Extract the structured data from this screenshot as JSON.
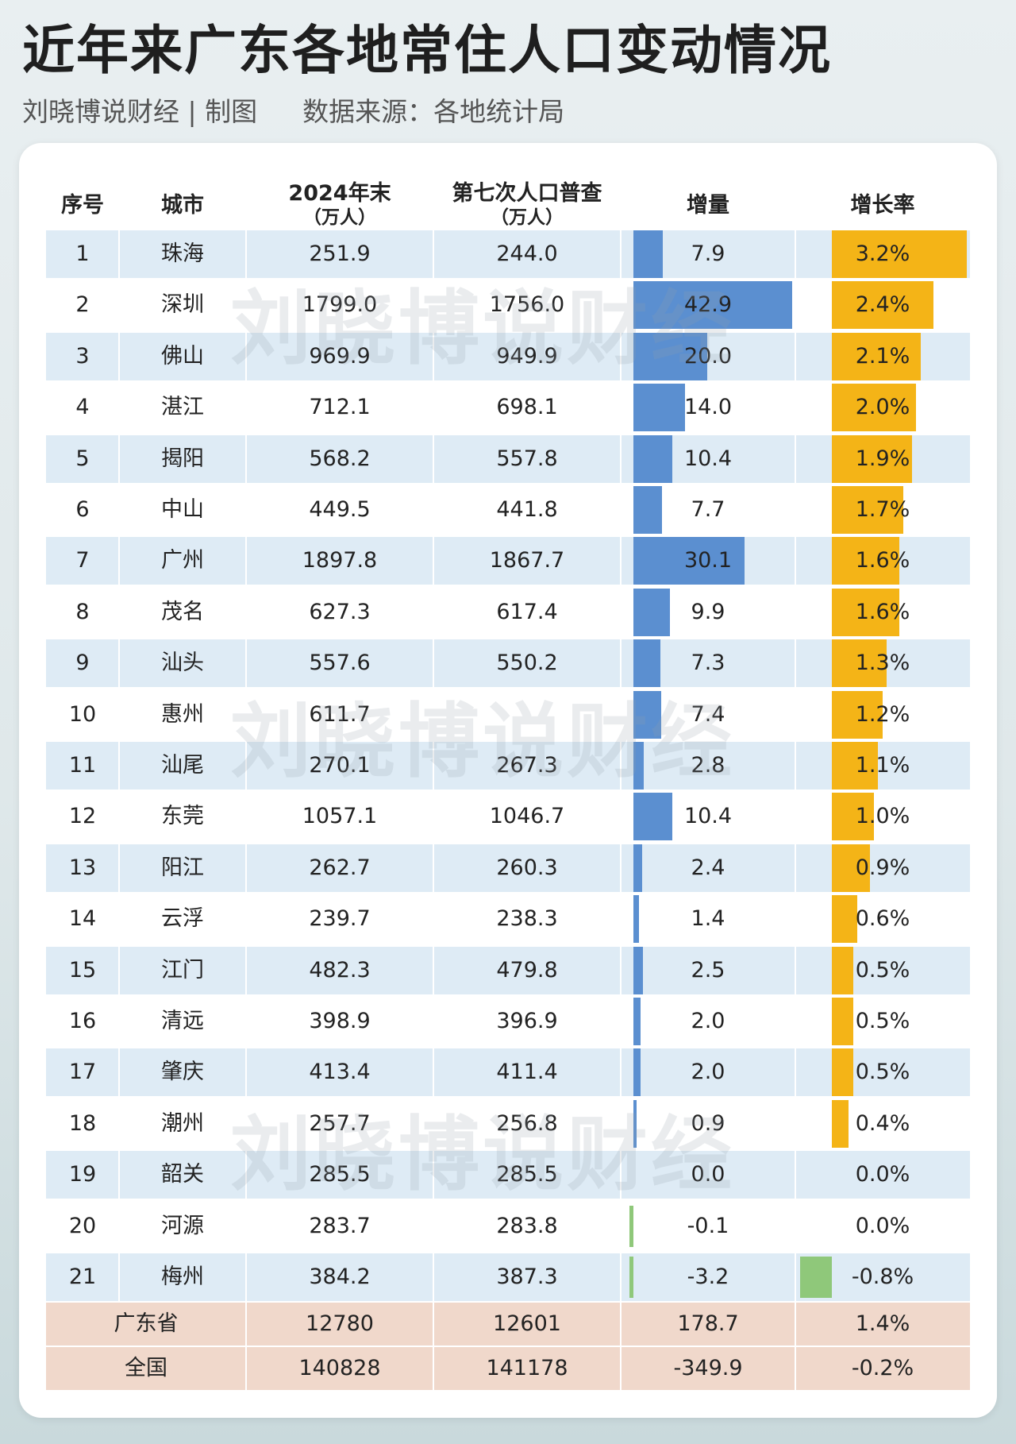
{
  "title": "近年来广东各地常住人口变动情况",
  "subtitle": {
    "author": "刘晓博说财经",
    "separator": "|",
    "made": "制图",
    "source": "数据来源：各地统计局"
  },
  "watermark": "刘晓博说财经",
  "colors": {
    "stripe": "#deebf5",
    "increase_bar": "#5b8fd0",
    "rate_bar": "#f4b417",
    "negative_bar": "#8fc87a",
    "summary_row": "#f0d8cb",
    "divider": "#ffffff"
  },
  "chart_data": {
    "type": "table",
    "title": "近年来广东各地常住人口变动情况",
    "columns": [
      {
        "name": "序号"
      },
      {
        "name": "城市"
      },
      {
        "name": "2024年末",
        "unit": "（万人）"
      },
      {
        "name": "第七次人口普查",
        "unit": "（万人）"
      },
      {
        "name": "增量"
      },
      {
        "name": "增长率"
      }
    ],
    "rows": [
      {
        "rank": "1",
        "city": "珠海",
        "pop_2024": "251.9",
        "pop_census": "244.0",
        "increase": 7.9,
        "rate": 3.2
      },
      {
        "rank": "2",
        "city": "深圳",
        "pop_2024": "1799.0",
        "pop_census": "1756.0",
        "increase": 42.9,
        "rate": 2.4
      },
      {
        "rank": "3",
        "city": "佛山",
        "pop_2024": "969.9",
        "pop_census": "949.9",
        "increase": 20.0,
        "rate": 2.1
      },
      {
        "rank": "4",
        "city": "湛江",
        "pop_2024": "712.1",
        "pop_census": "698.1",
        "increase": 14.0,
        "rate": 2.0
      },
      {
        "rank": "5",
        "city": "揭阳",
        "pop_2024": "568.2",
        "pop_census": "557.8",
        "increase": 10.4,
        "rate": 1.9
      },
      {
        "rank": "6",
        "city": "中山",
        "pop_2024": "449.5",
        "pop_census": "441.8",
        "increase": 7.7,
        "rate": 1.7
      },
      {
        "rank": "7",
        "city": "广州",
        "pop_2024": "1897.8",
        "pop_census": "1867.7",
        "increase": 30.1,
        "rate": 1.6
      },
      {
        "rank": "8",
        "city": "茂名",
        "pop_2024": "627.3",
        "pop_census": "617.4",
        "increase": 9.9,
        "rate": 1.6
      },
      {
        "rank": "9",
        "city": "汕头",
        "pop_2024": "557.6",
        "pop_census": "550.2",
        "increase": 7.3,
        "rate": 1.3
      },
      {
        "rank": "10",
        "city": "惠州",
        "pop_2024": "611.7",
        "pop_census": "",
        "increase": 7.4,
        "rate": 1.2
      },
      {
        "rank": "11",
        "city": "汕尾",
        "pop_2024": "270.1",
        "pop_census": "267.3",
        "increase": 2.8,
        "rate": 1.1
      },
      {
        "rank": "12",
        "city": "东莞",
        "pop_2024": "1057.1",
        "pop_census": "1046.7",
        "increase": 10.4,
        "rate": 1.0
      },
      {
        "rank": "13",
        "city": "阳江",
        "pop_2024": "262.7",
        "pop_census": "260.3",
        "increase": 2.4,
        "rate": 0.9
      },
      {
        "rank": "14",
        "city": "云浮",
        "pop_2024": "239.7",
        "pop_census": "238.3",
        "increase": 1.4,
        "rate": 0.6
      },
      {
        "rank": "15",
        "city": "江门",
        "pop_2024": "482.3",
        "pop_census": "479.8",
        "increase": 2.5,
        "rate": 0.5
      },
      {
        "rank": "16",
        "city": "清远",
        "pop_2024": "398.9",
        "pop_census": "396.9",
        "increase": 2.0,
        "rate": 0.5
      },
      {
        "rank": "17",
        "city": "肇庆",
        "pop_2024": "413.4",
        "pop_census": "411.4",
        "increase": 2.0,
        "rate": 0.5
      },
      {
        "rank": "18",
        "city": "潮州",
        "pop_2024": "257.7",
        "pop_census": "256.8",
        "increase": 0.9,
        "rate": 0.4
      },
      {
        "rank": "19",
        "city": "韶关",
        "pop_2024": "285.5",
        "pop_census": "285.5",
        "increase": 0.0,
        "rate": 0.0
      },
      {
        "rank": "20",
        "city": "河源",
        "pop_2024": "283.7",
        "pop_census": "283.8",
        "increase": -0.1,
        "rate": 0.0
      },
      {
        "rank": "21",
        "city": "梅州",
        "pop_2024": "384.2",
        "pop_census": "387.3",
        "increase": -3.2,
        "rate": -0.8
      }
    ],
    "summary": [
      {
        "name": "广东省",
        "pop_2024": "12780",
        "pop_census": "12601",
        "increase": "178.7",
        "rate": "1.4%"
      },
      {
        "name": "全国",
        "pop_2024": "140828",
        "pop_census": "141178",
        "increase": "-349.9",
        "rate": "-0.2%"
      }
    ]
  }
}
